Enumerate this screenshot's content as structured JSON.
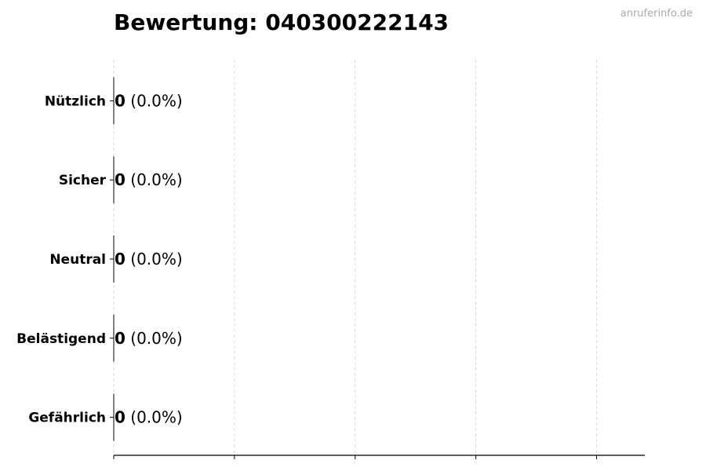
{
  "chart_data": {
    "type": "bar",
    "orientation": "horizontal",
    "title": "Bewertung: 040300222143",
    "watermark": "anruferinfo.de",
    "categories": [
      "Nützlich",
      "Sicher",
      "Neutral",
      "Belästigend",
      "Gefährlich"
    ],
    "values": [
      0,
      0,
      0,
      0,
      0
    ],
    "data_labels": [
      {
        "count": "0",
        "percent": "(0.0%)"
      },
      {
        "count": "0",
        "percent": "(0.0%)"
      },
      {
        "count": "0",
        "percent": "(0.0%)"
      },
      {
        "count": "0",
        "percent": "(0.0%)"
      },
      {
        "count": "0",
        "percent": "(0.0%)"
      }
    ],
    "xlabel": "",
    "ylabel": "",
    "xlim": [
      0,
      4.4
    ],
    "xticks": [
      0,
      1,
      2,
      3,
      4
    ],
    "xtick_labels_shown": false,
    "grid": "vertical dashed",
    "colors": {
      "grid": "#d9d9d9",
      "axis": "#000000",
      "bar_edge": "#000000"
    }
  }
}
